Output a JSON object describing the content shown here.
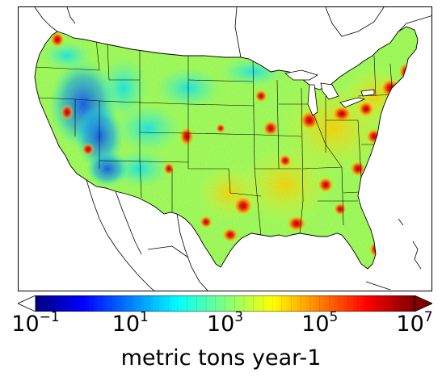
{
  "colorbar": {
    "label": "metric tons year-1",
    "scale": "log",
    "range": [
      0.1,
      10000000
    ],
    "extend": "both",
    "colormap": "jet",
    "ticks": [
      {
        "base": "10",
        "exp": "−1"
      },
      {
        "base": "10",
        "exp": "1"
      },
      {
        "base": "10",
        "exp": "3"
      },
      {
        "base": "10",
        "exp": "5"
      },
      {
        "base": "10",
        "exp": "7"
      }
    ],
    "colors": [
      "#00007f",
      "#0000ff",
      "#007fff",
      "#00ffff",
      "#7fff7f",
      "#ffff00",
      "#ff7f00",
      "#ff0000",
      "#7f0000"
    ]
  },
  "map": {
    "region": "Contiguous United States",
    "background_color": "#ffffff",
    "border_color": "#000000"
  }
}
